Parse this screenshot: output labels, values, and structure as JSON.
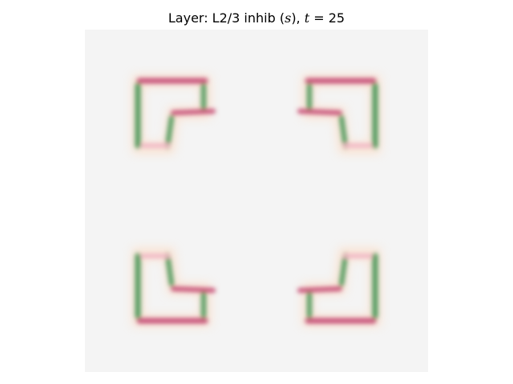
{
  "figure": {
    "title_prefix": "Layer: L2/3 inhib (",
    "title_var_s": "s",
    "title_mid": "), ",
    "title_var_t": "t",
    "title_suffix": " = 25"
  },
  "colors": {
    "background": "#f4f4f4",
    "pink": "#c8527a",
    "pink_light": "#f0b2c2",
    "green": "#4f9a5c",
    "green_light": "#a9d6a3",
    "orange_halo": "#ffd2b0"
  },
  "image": {
    "kind": "heatmap-like activation map",
    "shapes": [
      {
        "name": "top-left-hook"
      },
      {
        "name": "top-right-hook"
      },
      {
        "name": "bottom-left-hook"
      },
      {
        "name": "bottom-right-hook"
      }
    ]
  }
}
